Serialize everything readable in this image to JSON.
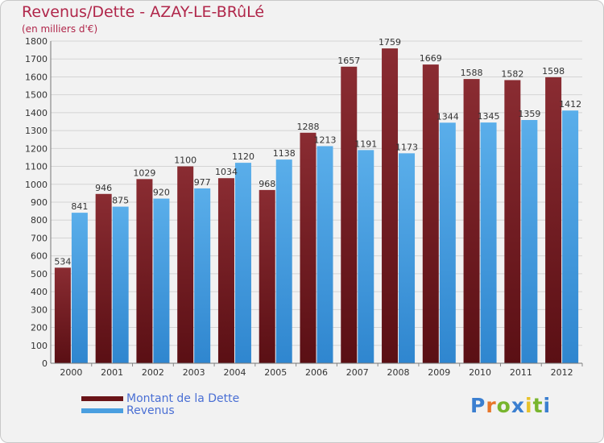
{
  "title": "Revenus/Dette - AZAY-LE-BRûLé",
  "subtitle": "(en milliers d'€)",
  "colors": {
    "dette": "#7a1f24",
    "revenus": "#4a9fe0",
    "title": "#b0264a"
  },
  "legend": {
    "dette": "Montant de la Dette",
    "revenus": "Revenus"
  },
  "logo": {
    "letters": [
      "P",
      "r",
      "o",
      "x",
      "i",
      "t",
      "i"
    ],
    "colors": [
      "#3b7fd0",
      "#e8762a",
      "#78b52e",
      "#3b7fd0",
      "#e8c22a",
      "#78b52e",
      "#3b7fd0"
    ]
  },
  "chart_data": {
    "type": "bar",
    "title": "Revenus/Dette - AZAY-LE-BRûLé",
    "subtitle": "(en milliers d'€)",
    "xlabel": "",
    "ylabel": "",
    "categories": [
      "2000",
      "2001",
      "2002",
      "2003",
      "2004",
      "2005",
      "2006",
      "2007",
      "2008",
      "2009",
      "2010",
      "2011",
      "2012"
    ],
    "series": [
      {
        "name": "Montant de la Dette",
        "values": [
          534,
          946,
          1029,
          1100,
          1034,
          968,
          1288,
          1657,
          1759,
          1669,
          1588,
          1582,
          1598
        ]
      },
      {
        "name": "Revenus",
        "values": [
          841,
          875,
          920,
          977,
          1120,
          1138,
          1213,
          1191,
          1173,
          1344,
          1345,
          1359,
          1412
        ]
      }
    ],
    "ylim": [
      0,
      1800
    ],
    "yticks": [
      0,
      100,
      200,
      300,
      400,
      500,
      600,
      700,
      800,
      900,
      1000,
      1100,
      1200,
      1300,
      1400,
      1500,
      1600,
      1700,
      1800
    ],
    "grid": true,
    "legend_position": "bottom-left"
  }
}
